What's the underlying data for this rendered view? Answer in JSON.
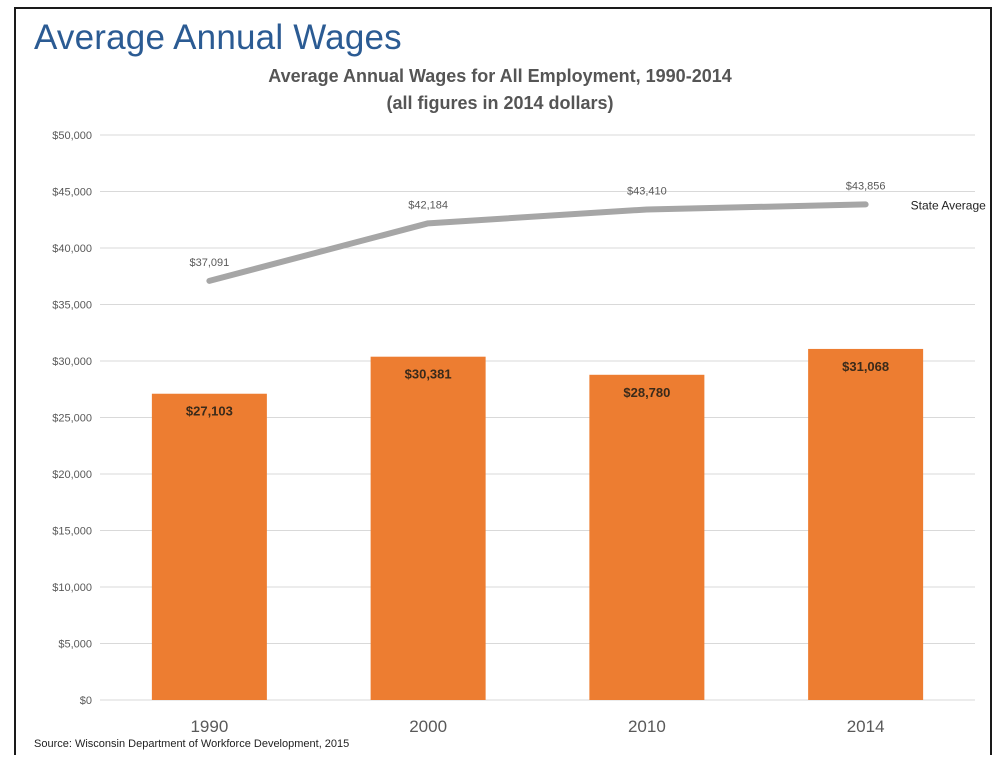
{
  "slide": {
    "title": "Average Annual Wages",
    "source": "Source: Wisconsin Department of Workforce Development,  2015"
  },
  "colors": {
    "bar": "#ed7d31",
    "line": "#a6a6a6",
    "grid": "#d9d9d9",
    "title": "#2b5b93"
  },
  "chart_data": {
    "type": "bar",
    "title": "Average Annual Wages for All Employment, 1990-2014",
    "subtitle": "(all figures in 2014 dollars)",
    "categories": [
      "1990",
      "2000",
      "2010",
      "2014"
    ],
    "ylim": [
      0,
      50000
    ],
    "yticks": [
      0,
      5000,
      10000,
      15000,
      20000,
      25000,
      30000,
      35000,
      40000,
      45000,
      50000
    ],
    "ytick_labels": [
      "$0",
      "$5,000",
      "$10,000",
      "$15,000",
      "$20,000",
      "$25,000",
      "$30,000",
      "$35,000",
      "$40,000",
      "$45,000",
      "$50,000"
    ],
    "grid": true,
    "series": [
      {
        "type": "bar",
        "values": [
          27103,
          30381,
          28780,
          31068
        ],
        "labels": [
          "$27,103",
          "$30,381",
          "$28,780",
          "$31,068"
        ]
      },
      {
        "type": "line",
        "name": "State Average",
        "values": [
          37091,
          42184,
          43410,
          43856
        ],
        "labels": [
          "$37,091",
          "$42,184",
          "$43,410",
          "$43,856"
        ]
      }
    ]
  }
}
